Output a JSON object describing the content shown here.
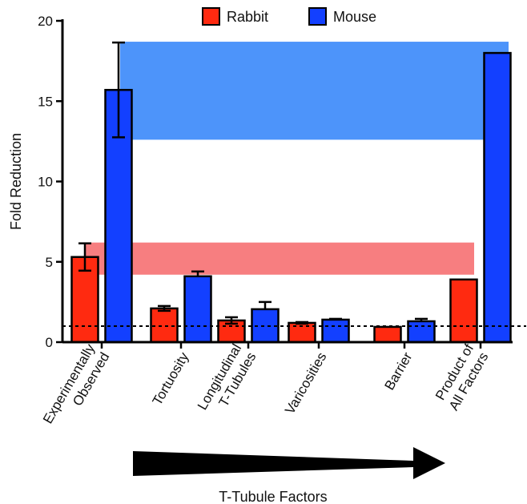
{
  "chart_data": {
    "type": "bar",
    "title": "",
    "xlabel": "T-Tubule Factors",
    "ylabel": "Fold Reduction",
    "ylim": [
      0,
      20
    ],
    "yticks": [
      "0",
      "5",
      "10",
      "15",
      "20"
    ],
    "grid": false,
    "legend_position": "top-center",
    "categories": [
      [
        "Experimentally",
        "Observed"
      ],
      [
        "Tortuosity"
      ],
      [
        "Longitudinal",
        "T-Tubules"
      ],
      [
        "Varicosities"
      ],
      [
        "Barrier"
      ],
      [
        "Product of",
        "All Factors"
      ]
    ],
    "series": [
      {
        "name": "Rabbit",
        "color": "#ff2a10",
        "values": [
          5.3,
          2.1,
          1.35,
          1.2,
          0.95,
          3.9
        ],
        "errors": [
          0.85,
          0.15,
          0.2,
          0.05,
          0.0,
          0.0
        ]
      },
      {
        "name": "Mouse",
        "color": "#1340ff",
        "values": [
          15.7,
          4.1,
          2.05,
          1.4,
          1.3,
          18.0
        ],
        "errors": [
          2.95,
          0.3,
          0.45,
          0.05,
          0.15,
          0.0
        ]
      }
    ],
    "bands": [
      {
        "series": "Mouse",
        "range": [
          12.6,
          18.7
        ],
        "color": "#4d94fa"
      },
      {
        "series": "Rabbit",
        "range": [
          4.2,
          6.2
        ],
        "color": "#f77e80"
      }
    ],
    "reference_line": {
      "y": 1,
      "style": "dashed"
    },
    "arrow_direction": "right"
  }
}
